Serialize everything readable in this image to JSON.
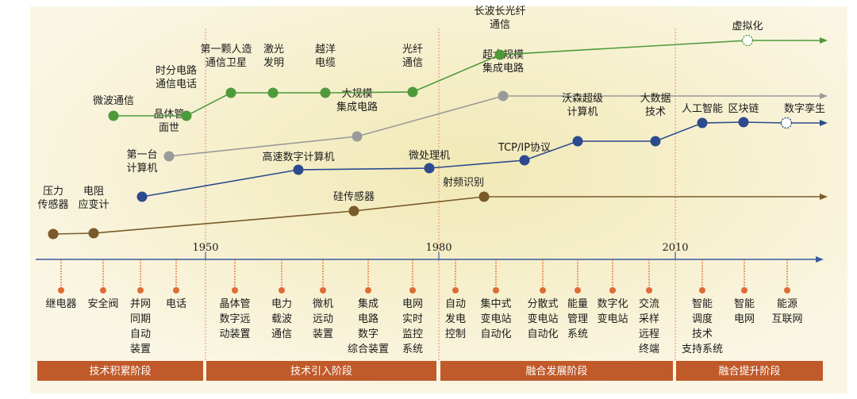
{
  "colors": {
    "bg": "#faf6e4",
    "bg_glow": "#f1e9b5",
    "green": "#4e9a3b",
    "gray": "#9a9a9a",
    "blue": "#2e4a8e",
    "brown": "#7a5a2a",
    "axis": "#3a5aa0",
    "stem": "#e06a36",
    "divider": "#e58a6a",
    "bar": "#c05a2a"
  },
  "years": [
    "1950",
    "1980",
    "2010"
  ],
  "stages": [
    "技术积累阶段",
    "技术引入阶段",
    "融合发展阶段",
    "融合提升阶段"
  ],
  "tracks": {
    "green": {
      "nodes": [
        {
          "id": "weibo",
          "lines": [
            "微波通信"
          ]
        },
        {
          "id": "shifen",
          "lines": [
            "时分电路",
            "通信电话"
          ]
        },
        {
          "id": "weixing",
          "lines": [
            "第一颗人造",
            "通信卫星"
          ]
        },
        {
          "id": "jiguang",
          "lines": [
            "激光",
            "发明"
          ]
        },
        {
          "id": "yueyang",
          "lines": [
            "越洋",
            "电缆"
          ]
        },
        {
          "id": "guangxian",
          "lines": [
            "光纤",
            "通信"
          ]
        },
        {
          "id": "changbo",
          "lines": [
            "长波长光纤",
            "通信"
          ]
        },
        {
          "id": "xuni",
          "lines": [
            "虚拟化"
          ],
          "hollow": true
        }
      ]
    },
    "gray": {
      "nodes": [
        {
          "id": "jingti",
          "lines": [
            "晶体管",
            "面世"
          ]
        },
        {
          "id": "daguimo",
          "lines": [
            "大规模",
            "集成电路"
          ]
        },
        {
          "id": "chaoda",
          "lines": [
            "超大规模",
            "集成电路"
          ]
        }
      ]
    },
    "blue": {
      "nodes": [
        {
          "id": "diyitai",
          "lines": [
            "第一台",
            "计算机"
          ]
        },
        {
          "id": "gaosu",
          "lines": [
            "高速数字计算机"
          ]
        },
        {
          "id": "weichuli",
          "lines": [
            "微处理机"
          ]
        },
        {
          "id": "tcpip",
          "lines": [
            "TCP/IP协议"
          ]
        },
        {
          "id": "woseng",
          "lines": [
            "沃森超级",
            "计算机"
          ]
        },
        {
          "id": "dashuju",
          "lines": [
            "大数据",
            "技术"
          ]
        },
        {
          "id": "rengong",
          "lines": [
            "人工智能"
          ]
        },
        {
          "id": "qukuai",
          "lines": [
            "区块链"
          ]
        },
        {
          "id": "shuzi",
          "lines": [
            "数字孪生"
          ],
          "hollow": true
        }
      ]
    },
    "brown": {
      "nodes": [
        {
          "id": "yali",
          "lines": [
            "压力",
            "传感器"
          ]
        },
        {
          "id": "dianzu",
          "lines": [
            "电阻",
            "应变计"
          ]
        },
        {
          "id": "gui",
          "lines": [
            "硅传感器"
          ]
        },
        {
          "id": "shepin",
          "lines": [
            "射频识别"
          ]
        }
      ]
    }
  },
  "bottom_items": [
    {
      "lines": [
        "继电器"
      ]
    },
    {
      "lines": [
        "安全阀"
      ]
    },
    {
      "lines": [
        "并网",
        "同期",
        "自动",
        "装置"
      ]
    },
    {
      "lines": [
        "电话"
      ]
    },
    {
      "lines": [
        "晶体管",
        "数字远",
        "动装置"
      ]
    },
    {
      "lines": [
        "电力",
        "载波",
        "通信"
      ]
    },
    {
      "lines": [
        "微机",
        "远动",
        "装置"
      ]
    },
    {
      "lines": [
        "集成",
        "电路",
        "数字",
        "综合装置"
      ]
    },
    {
      "lines": [
        "电网",
        "实时",
        "监控",
        "系统"
      ]
    },
    {
      "lines": [
        "自动",
        "发电",
        "控制"
      ]
    },
    {
      "lines": [
        "集中式",
        "变电站",
        "自动化"
      ]
    },
    {
      "lines": [
        "分散式",
        "变电站",
        "自动化"
      ]
    },
    {
      "lines": [
        "能量",
        "管理",
        "系统"
      ]
    },
    {
      "lines": [
        "数字化",
        "变电站"
      ]
    },
    {
      "lines": [
        "交流",
        "采样",
        "远程",
        "终端"
      ]
    },
    {
      "lines": [
        "智能",
        "调度",
        "技术",
        "支持系统"
      ]
    },
    {
      "lines": [
        "智能",
        "电网"
      ]
    },
    {
      "lines": [
        "能源",
        "互联网"
      ]
    }
  ]
}
